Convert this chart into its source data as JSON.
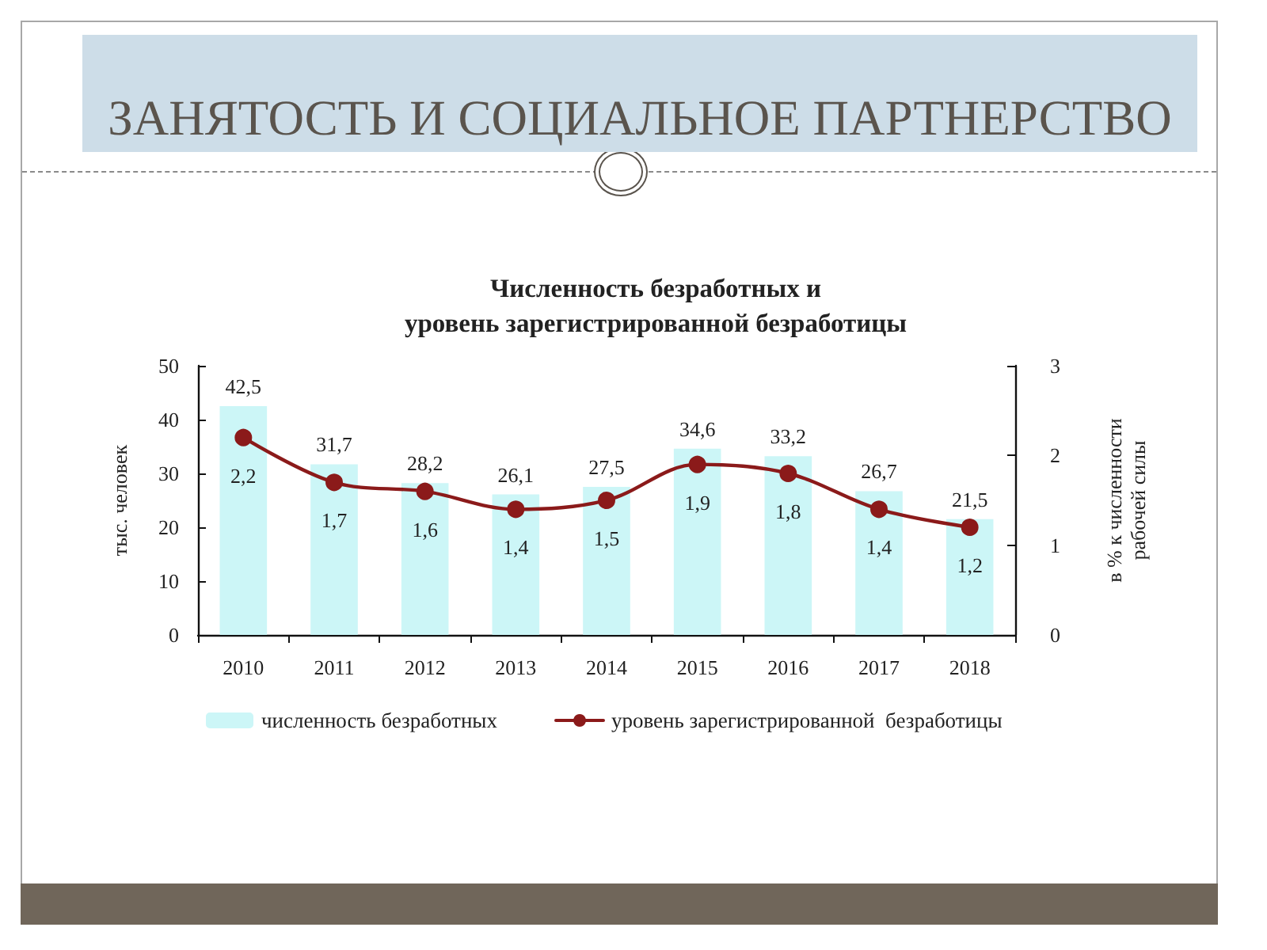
{
  "chart_data": {
    "type": "bar",
    "title": "ЗАНЯТОСТЬ И СОЦИАЛЬНОЕ ПАРТНЕРСТВО",
    "subtitle": "Численность безработных и\nуровень зарегистрированной безработицы",
    "ylabel": "тыс. человек",
    "y2label": "в % к численности\nрабочей силы",
    "categories": [
      "2010",
      "2011",
      "2012",
      "2013",
      "2014",
      "2015",
      "2016",
      "2017",
      "2018"
    ],
    "series": [
      {
        "name": "численность безработных",
        "color": "#ccf6f7",
        "values": [
          42.5,
          31.7,
          28.2,
          26.1,
          27.5,
          34.6,
          33.2,
          26.7,
          21.5
        ],
        "value_labels": [
          "42,5",
          "31,7",
          "28,2",
          "26,1",
          "27,5",
          "34,6",
          "33,2",
          "26,7",
          "21,5"
        ]
      },
      {
        "name": "уровень зарегистрированной  безработицы",
        "type": "line",
        "axis": "y2",
        "color": "#8b1a1a",
        "marker": "circle",
        "line_style": "solid",
        "values": [
          2.2,
          1.7,
          1.6,
          1.4,
          1.5,
          1.9,
          1.8,
          1.4,
          1.2
        ],
        "value_labels": [
          "2,2",
          "1,7",
          "1,6",
          "1,4",
          "1,5",
          "1,9",
          "1,8",
          "1,4",
          "1,2"
        ]
      }
    ],
    "ylim": [
      0,
      50
    ],
    "yticks": [
      0,
      10,
      20,
      30,
      40,
      50
    ],
    "y2lim": [
      0,
      3
    ],
    "y2ticks": [
      0,
      1,
      2,
      3
    ],
    "legend": "bottom"
  }
}
